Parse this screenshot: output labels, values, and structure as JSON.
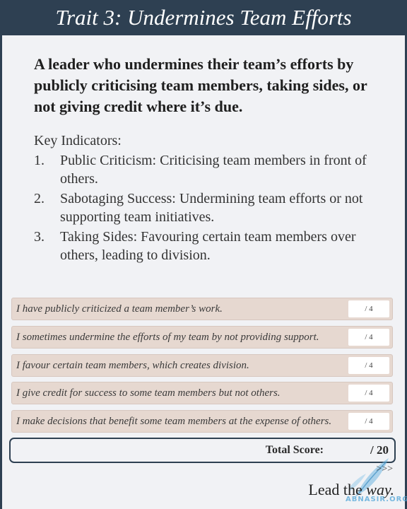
{
  "header": {
    "title": "Trait 3: Undermines Team Efforts"
  },
  "intro": "A leader who undermines their team’s efforts by publicly criticising team members, taking sides, or not giving credit where it’s due.",
  "indicators": {
    "heading": "Key Indicators:",
    "items": [
      {
        "num": "1.",
        "text": "Public Criticism: Criticising team members in front of others."
      },
      {
        "num": "2.",
        "text": "Sabotaging Success: Undermining team efforts or not supporting team initiatives."
      },
      {
        "num": "3.",
        "text": "Taking Sides: Favouring certain team members over others, leading to division."
      }
    ]
  },
  "questions": [
    {
      "text": "I have publicly criticized a team member’s work.",
      "score": "/ 4"
    },
    {
      "text": "I sometimes undermine the efforts of my team by not providing support.",
      "score": "/ 4"
    },
    {
      "text": "I favour certain team members, which creates division.",
      "score": "/ 4"
    },
    {
      "text": "I give credit for success to some team members but not others.",
      "score": "/ 4"
    },
    {
      "text": "I make decisions that benefit some team members at the expense of others.",
      "score": "/ 4"
    }
  ],
  "total": {
    "label": "Total Score:",
    "value": "/ 20"
  },
  "footer": {
    "arrows": ">>>",
    "lead_plain": "Lead the ",
    "lead_italic": "way."
  },
  "watermark": {
    "text": "ABNASIR.ORG"
  },
  "colors": {
    "navy": "#2e4052",
    "row_bg": "#e6d8d0",
    "page_bg": "#f1f2f5"
  }
}
